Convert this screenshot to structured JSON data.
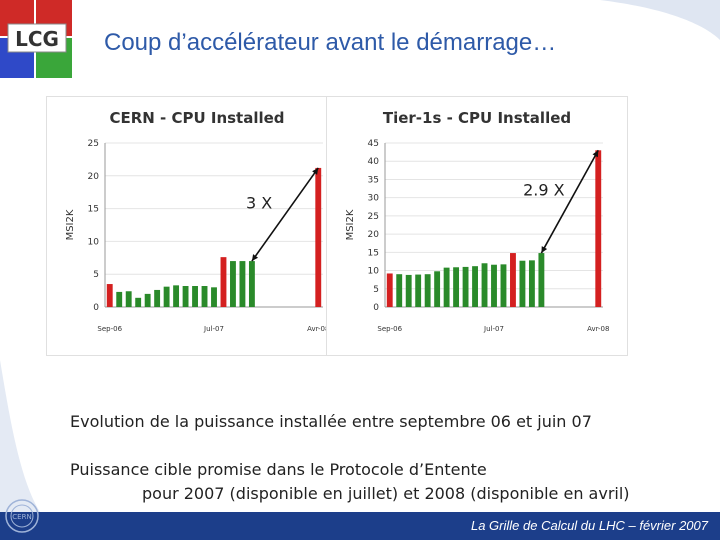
{
  "title": "Coup d’accélérateur avant le démarrage…",
  "logo_text": "LCG",
  "cern_logo_text": "CERN",
  "chart_data": [
    {
      "type": "bar",
      "title": "CERN - CPU Installed",
      "ylabel": "MSI2K",
      "ylim": [
        0,
        25
      ],
      "yticks": [
        0,
        5,
        10,
        15,
        20,
        25
      ],
      "xticklabels": [
        "Sep-06",
        "Jul-07",
        "Avr-08"
      ],
      "values": [
        3.5,
        2.3,
        2.4,
        1.4,
        2.0,
        2.6,
        3.1,
        3.3,
        3.2,
        3.2,
        3.2,
        3.0,
        7.6,
        7.0,
        7.0,
        7.0,
        0,
        0,
        0,
        0,
        0,
        0,
        21.2
      ],
      "colors": [
        "red",
        "green",
        "green",
        "green",
        "green",
        "green",
        "green",
        "green",
        "green",
        "green",
        "green",
        "green",
        "red",
        "green",
        "green",
        "green",
        "none",
        "none",
        "none",
        "none",
        "none",
        "none",
        "red"
      ],
      "annotation": "3 X",
      "arrow_from_bar": 15,
      "arrow_to_bar": 22
    },
    {
      "type": "bar",
      "title": "Tier-1s - CPU Installed",
      "ylabel": "MSI2K",
      "ylim": [
        0,
        45
      ],
      "yticks": [
        0,
        5,
        10,
        15,
        20,
        25,
        30,
        35,
        40,
        45
      ],
      "xticklabels": [
        "Sep-06",
        "Jul-07",
        "Avr-08"
      ],
      "values": [
        9.2,
        9.0,
        8.8,
        8.9,
        9.0,
        9.8,
        10.8,
        10.9,
        11.0,
        11.2,
        12.0,
        11.6,
        11.7,
        14.8,
        12.7,
        12.8,
        14.8,
        0,
        0,
        0,
        0,
        0,
        43.0
      ],
      "colors": [
        "red",
        "green",
        "green",
        "green",
        "green",
        "green",
        "green",
        "green",
        "green",
        "green",
        "green",
        "green",
        "green",
        "red",
        "green",
        "green",
        "green",
        "none",
        "none",
        "none",
        "none",
        "none",
        "red"
      ],
      "annotation": "2.9 X",
      "arrow_from_bar": 16,
      "arrow_to_bar": 22
    }
  ],
  "body": {
    "line1": "Evolution de la puissance installée entre septembre 06 et juin 07",
    "line2": "Puissance cible promise dans le Protocole d’Entente",
    "line3": "pour 2007 (disponible en juillet) et 2008 (disponible en avril)"
  },
  "footer": "La Grille de Calcul du LHC – février 2007",
  "colors": {
    "title": "#2e5aa8",
    "footer_bg": "#1c3e8a",
    "bar_green": "#2a8a2a",
    "bar_red": "#d42020"
  }
}
